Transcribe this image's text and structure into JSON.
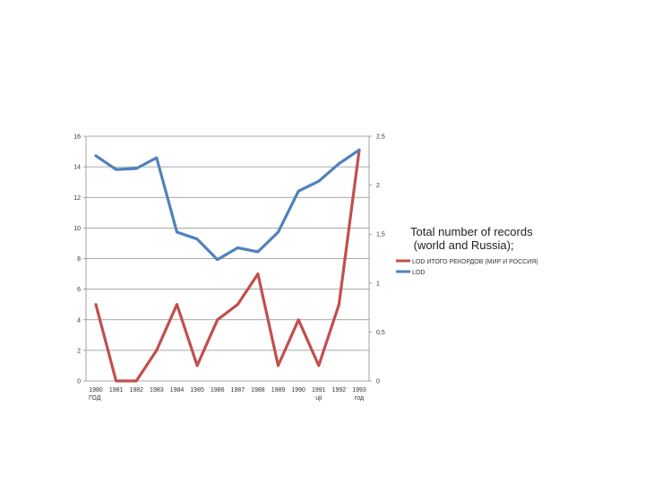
{
  "chart_data": {
    "type": "line",
    "categories": [
      "1980",
      "1981",
      "1982",
      "1983",
      "1984",
      "1985",
      "1986",
      "1987",
      "1988",
      "1989",
      "1990",
      "1991",
      "1992",
      "1993"
    ],
    "category_sublabels": [
      "ГОД",
      "",
      "",
      "",
      "",
      "",
      "",
      "",
      "",
      "",
      "",
      "uji",
      "",
      "год"
    ],
    "series": [
      {
        "name": "LOD ИТОГО РЕКОРДОВ (МИР И РОССИЯ)",
        "axis": "left",
        "color": "#c0504d",
        "values": [
          5,
          0,
          0,
          2,
          5,
          1,
          4,
          5,
          7,
          1,
          4,
          1,
          5,
          15.1
        ]
      },
      {
        "name": "LOD",
        "axis": "right",
        "color": "#4f81bd",
        "values": [
          2.3,
          2.16,
          2.17,
          2.28,
          1.52,
          1.45,
          1.24,
          1.36,
          1.32,
          1.52,
          1.94,
          2.04,
          2.22,
          2.36
        ]
      }
    ],
    "y_left": {
      "min": 0,
      "max": 16,
      "ticks": [
        "0",
        "2",
        "4",
        "6",
        "8",
        "10",
        "12",
        "14",
        "16"
      ]
    },
    "y_right": {
      "min": 0,
      "max": 2.5,
      "ticks": [
        "0",
        "0,5",
        "1",
        "1,5",
        "2",
        "2,5"
      ]
    },
    "grid": true,
    "legend": {
      "title_line1": "Total number of records",
      "title_line2": " (world and Russia);",
      "position": "right"
    }
  }
}
